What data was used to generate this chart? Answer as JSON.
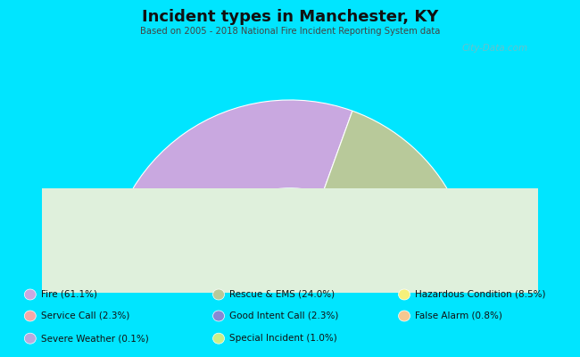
{
  "title": "Incident types in Manchester, KY",
  "subtitle": "Based on 2005 - 2018 National Fire Incident Reporting System data",
  "background_outer": "#00e5ff",
  "background_chart": "#dff0dc",
  "segments": [
    {
      "label": "Fire",
      "pct": 61.1,
      "color": "#c9a8e0"
    },
    {
      "label": "Rescue & EMS",
      "pct": 24.0,
      "color": "#b8c99a"
    },
    {
      "label": "Hazardous Condition",
      "pct": 8.5,
      "color": "#f5f07a"
    },
    {
      "label": "Service Call",
      "pct": 2.3,
      "color": "#f5a8a8"
    },
    {
      "label": "Good Intent Call",
      "pct": 2.3,
      "color": "#8888d4"
    },
    {
      "label": "Special Incident",
      "pct": 1.0,
      "color": "#ccee88"
    },
    {
      "label": "False Alarm",
      "pct": 0.8,
      "color": "#f5c890"
    },
    {
      "label": "Severe Weather",
      "pct": 0.1,
      "color": "#b8aadd"
    }
  ],
  "legend_order": [
    {
      "label": "Fire (61.1%)",
      "color": "#c9a8e0"
    },
    {
      "label": "Service Call (2.3%)",
      "color": "#f5a8a8"
    },
    {
      "label": "Severe Weather (0.1%)",
      "color": "#b8aadd"
    },
    {
      "label": "Rescue & EMS (24.0%)",
      "color": "#b8c99a"
    },
    {
      "label": "Good Intent Call (2.3%)",
      "color": "#8888d4"
    },
    {
      "label": "Special Incident (1.0%)",
      "color": "#ccee88"
    },
    {
      "label": "Hazardous Condition (8.5%)",
      "color": "#f5f07a"
    },
    {
      "label": "False Alarm (0.8%)",
      "color": "#f5c890"
    }
  ],
  "outer_r": 1.0,
  "inner_r": 0.52,
  "watermark": "City-Data.com"
}
